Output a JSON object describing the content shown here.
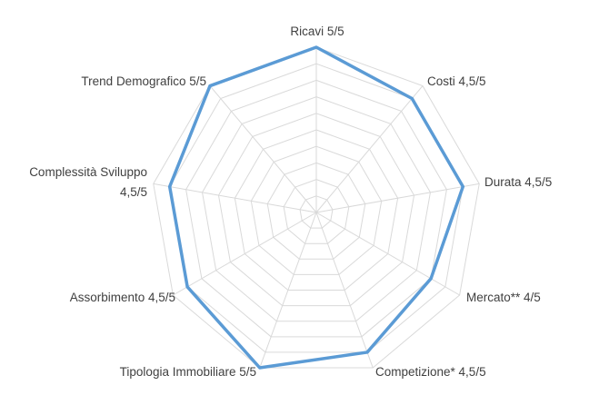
{
  "chart_data": {
    "type": "radar",
    "title": "",
    "rlim": [
      0,
      5
    ],
    "grid": true,
    "legend": "none",
    "categories": [
      [
        "Ricavi 5/5"
      ],
      [
        "Costi 4,5/5"
      ],
      [
        "Durata 4,5/5"
      ],
      [
        "Mercato** 4/5"
      ],
      [
        "Competizione* 4,5/5"
      ],
      [
        "Tipologia Immobiliare 5/5"
      ],
      [
        "Assorbimento 4,5/5"
      ],
      [
        "Complessità Sviluppo",
        "4,5/5"
      ],
      [
        "Trend Demografico 5/5"
      ]
    ],
    "series": [
      {
        "values": [
          5,
          4.5,
          4.5,
          4,
          4.5,
          5,
          4.5,
          4.5,
          5
        ],
        "color": "#5b9bd5"
      }
    ]
  }
}
